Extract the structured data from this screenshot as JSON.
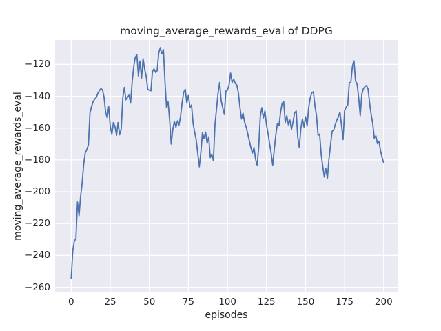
{
  "figure": {
    "title": "moving_average_rewards_eval of DDPG",
    "xlabel": "episodes",
    "ylabel": "moving_average_rewards_eval"
  },
  "chart_data": {
    "type": "line",
    "title": "moving_average_rewards_eval of DDPG",
    "xlabel": "episodes",
    "ylabel": "moving_average_rewards_eval",
    "grid": true,
    "legend_position": "none",
    "plot_bg_color": "#eaeaf2",
    "grid_color": "#ffffff",
    "text_color": "#262626",
    "line_color": "#4c72b0",
    "xlim": [
      -10.3,
      208.9
    ],
    "ylim": [
      -263.2,
      -104.7
    ],
    "x_ticks": [
      0,
      25,
      50,
      75,
      100,
      125,
      150,
      175,
      200
    ],
    "x_tick_labels": [
      "0",
      "25",
      "50",
      "75",
      "100",
      "125",
      "150",
      "175",
      "200"
    ],
    "y_ticks": [
      -260,
      -240,
      -220,
      -200,
      -180,
      -160,
      -140,
      -120
    ],
    "y_tick_labels": [
      "−260",
      "−240",
      "−220",
      "−200",
      "−180",
      "−160",
      "−140",
      "−120"
    ],
    "series": [
      {
        "name": "moving_average_rewards_eval",
        "color": "#4c72b0",
        "x_start": 0,
        "x_step": 1,
        "values": [
          -254.4,
          -237,
          -231,
          -229.5,
          -206.5,
          -215,
          -203,
          -194.5,
          -182.5,
          -175.5,
          -173.5,
          -170.5,
          -150.5,
          -146.5,
          -143.5,
          -141.8,
          -140.8,
          -138.3,
          -136.5,
          -135.2,
          -136,
          -140.5,
          -150,
          -153.5,
          -146.5,
          -159,
          -164,
          -156.5,
          -159,
          -164.5,
          -156.5,
          -164.2,
          -160.5,
          -141,
          -134.5,
          -142.2,
          -140.8,
          -139.3,
          -144.3,
          -131,
          -121.5,
          -115.5,
          -114,
          -127.2,
          -117.9,
          -128.6,
          -116.4,
          -123,
          -127.5,
          -135.7,
          -136.3,
          -136.6,
          -124.5,
          -122.8,
          -125.1,
          -124,
          -113,
          -109.5,
          -113.5,
          -110.8,
          -130.5,
          -147,
          -143.5,
          -155,
          -170,
          -161,
          -155.8,
          -159.5,
          -155.5,
          -158,
          -152.5,
          -144,
          -137.5,
          -135.7,
          -144.3,
          -139.5,
          -147,
          -145.5,
          -157,
          -162.5,
          -167.5,
          -176,
          -184.3,
          -175,
          -163,
          -166.5,
          -162.5,
          -169.5,
          -165.5,
          -178.5,
          -176.5,
          -180.5,
          -158,
          -148,
          -138,
          -131.4,
          -143,
          -147.2,
          -151.4,
          -136.8,
          -136.2,
          -133,
          -125.5,
          -131.4,
          -129.3,
          -132,
          -132.9,
          -138,
          -147,
          -154.3,
          -150.7,
          -156.5,
          -159.3,
          -163.6,
          -168,
          -172.2,
          -175.7,
          -172.2,
          -179.5,
          -183.6,
          -172,
          -153,
          -147.2,
          -153.6,
          -149.3,
          -158,
          -163.5,
          -170,
          -176,
          -183.6,
          -173,
          -164,
          -157,
          -158.5,
          -150,
          -144.5,
          -143.3,
          -156.4,
          -152.2,
          -157.9,
          -155,
          -160.7,
          -156,
          -150.5,
          -149.3,
          -165.7,
          -172.2,
          -160,
          -154.3,
          -159.3,
          -152.9,
          -158.6,
          -147,
          -141,
          -137.9,
          -137.2,
          -146,
          -152.2,
          -164.5,
          -163.8,
          -176.4,
          -184,
          -190.7,
          -185.5,
          -191.4,
          -179.3,
          -170.5,
          -162,
          -161.3,
          -157.8,
          -155,
          -152.9,
          -150,
          -158,
          -167.2,
          -149,
          -146.8,
          -145.5,
          -131.5,
          -131.2,
          -121,
          -117.9,
          -130.5,
          -132.4,
          -141,
          -152.2,
          -138.5,
          -135.3,
          -134,
          -133.2,
          -135.5,
          -144.3,
          -151.5,
          -157.2,
          -166.4,
          -164.8,
          -169.8,
          -168.3,
          -174.3,
          -178.5,
          -181.8
        ]
      }
    ]
  }
}
